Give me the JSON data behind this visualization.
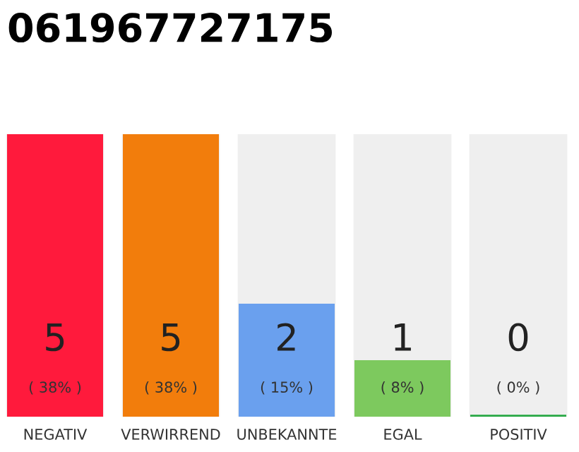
{
  "chart_data": {
    "type": "bar",
    "title": "061967727175",
    "categories": [
      "NEGATIV",
      "VERWIRREND",
      "UNBEKANNTE",
      "EGAL",
      "POSITIV"
    ],
    "values": [
      5,
      5,
      2,
      1,
      0
    ],
    "colors": [
      "#ff1a3c",
      "#f27d0c",
      "#6aa0ee",
      "#7dc95e",
      "#27a844"
    ],
    "ylim": [
      0,
      5
    ],
    "tick_labels": "x",
    "data_labels": true,
    "grid": false,
    "annotations": [
      "( 38% )",
      "( 38% )",
      "( 15% )",
      "( 8% )",
      "( 0% )"
    ]
  }
}
